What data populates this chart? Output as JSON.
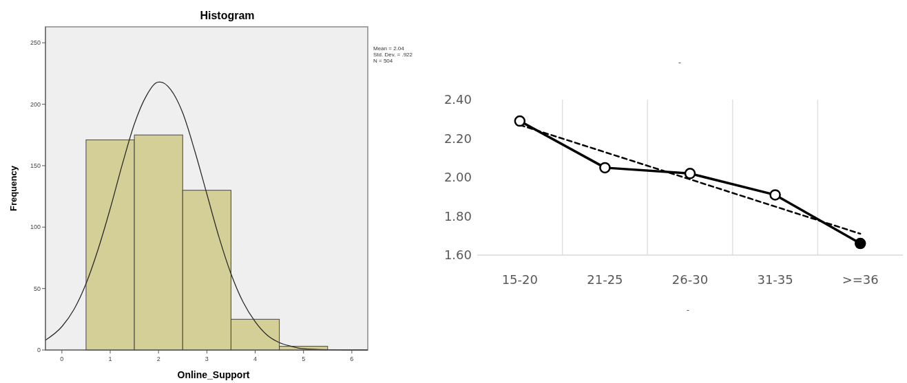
{
  "chart_data": [
    {
      "type": "histogram",
      "title": "Histogram",
      "xlabel": "Online_Support",
      "ylabel": "Frequency",
      "bins": [
        0.5,
        1.5,
        2.5,
        3.5,
        4.5,
        5.5
      ],
      "values": [
        171,
        175,
        130,
        25,
        3
      ],
      "color": "#d4cf96",
      "xlim": [
        -0.34,
        6.33
      ],
      "xticks": [
        0,
        1,
        2,
        3,
        4,
        5,
        6
      ],
      "ylim": [
        0,
        263
      ],
      "yticks": [
        0,
        50,
        100,
        150,
        200,
        250
      ],
      "grid": false,
      "series": [
        {
          "type": "line",
          "color": "#2b2b2b",
          "x": [
            -0.34,
            0,
            0.25,
            0.5,
            0.75,
            1,
            1.25,
            1.5,
            1.75,
            2,
            2.04,
            2.25,
            2.5,
            2.75,
            3,
            3.25,
            3.5,
            3.75,
            4,
            4.25,
            4.5,
            4.75,
            5,
            5.5,
            6,
            6.33
          ],
          "values": [
            8,
            19,
            33,
            54,
            82,
            115,
            151,
            184,
            207,
            218,
            218,
            212,
            193,
            162,
            127,
            92,
            62,
            39,
            23,
            12,
            6,
            3,
            1,
            0.2,
            0,
            0
          ]
        }
      ],
      "annotations": [
        "Mean = 2.04",
        "Std. Dev. = .922",
        "N = 504"
      ]
    },
    {
      "type": "line",
      "title": "-",
      "xlabel": "-",
      "categories": [
        "15-20",
        "21-25",
        "26-30",
        "31-35",
        ">=36"
      ],
      "ylim": [
        1.6,
        2.4
      ],
      "yticks": [
        {
          "value": 1.6,
          "label": "1.60"
        },
        {
          "value": 1.8,
          "label": "1.80"
        },
        {
          "value": 2.0,
          "label": "2.00"
        },
        {
          "value": 2.2,
          "label": "2.20"
        },
        {
          "value": 2.4,
          "label": "2.40"
        }
      ],
      "grid": "x",
      "series": [
        {
          "color": "#000000",
          "values": [
            2.29,
            2.05,
            2.02,
            1.91,
            1.66
          ],
          "marker": "circle",
          "colors": [
            "#ffffff",
            "#ffffff",
            "#ffffff",
            "#ffffff",
            "#000000"
          ],
          "line_style": "solid"
        },
        {
          "color": "#000000",
          "values": [
            2.27,
            2.13,
            1.99,
            1.85,
            1.71
          ],
          "marker": "none",
          "line_style": "dashed"
        }
      ]
    }
  ]
}
